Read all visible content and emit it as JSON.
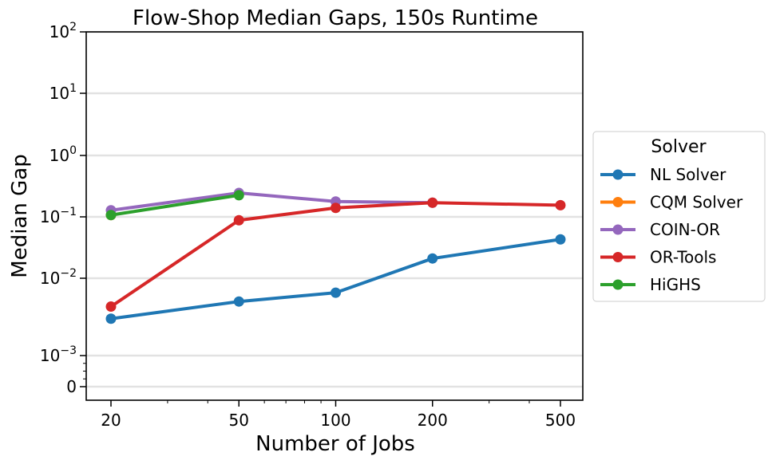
{
  "chart_data": {
    "type": "line",
    "title": "Flow-Shop Median Gaps, 150s Runtime",
    "xlabel": "Number of Jobs",
    "ylabel": "Median Gap",
    "x_scale": "log",
    "y_scale": "symlog",
    "x_ticks": [
      20,
      50,
      100,
      200,
      500
    ],
    "x_tick_labels": [
      "20",
      "50",
      "100",
      "200",
      "500"
    ],
    "y_ticks": [
      0,
      0.001,
      0.01,
      0.1,
      1,
      10,
      100
    ],
    "y_tick_labels": [
      {
        "base": "0",
        "exp": ""
      },
      {
        "base": "10",
        "exp": "−3"
      },
      {
        "base": "10",
        "exp": "−2"
      },
      {
        "base": "10",
        "exp": "−1"
      },
      {
        "base": "10",
        "exp": "0"
      },
      {
        "base": "10",
        "exp": "1"
      },
      {
        "base": "10",
        "exp": "2"
      }
    ],
    "ylim": [
      0,
      100
    ],
    "grid": "horizontal",
    "legend": {
      "title": "Solver",
      "placement": "outside-right"
    },
    "series": [
      {
        "name": "NL Solver",
        "color": "#1f77b4",
        "x": [
          20,
          50,
          100,
          200,
          500
        ],
        "y": [
          0.003,
          0.005,
          0.0065,
          0.021,
          0.043
        ]
      },
      {
        "name": "CQM Solver",
        "color": "#ff7f0e",
        "x": [
          20
        ],
        "y": [
          0.107
        ]
      },
      {
        "name": "COIN-OR",
        "color": "#9467bd",
        "x": [
          20,
          50,
          100,
          200
        ],
        "y": [
          0.128,
          0.245,
          0.178,
          0.17
        ]
      },
      {
        "name": "OR-Tools",
        "color": "#d62728",
        "x": [
          20,
          50,
          100,
          200,
          500
        ],
        "y": [
          0.0043,
          0.088,
          0.14,
          0.17,
          0.155
        ]
      },
      {
        "name": "HiGHS",
        "color": "#2ca02c",
        "x": [
          20,
          50
        ],
        "y": [
          0.107,
          0.225
        ]
      }
    ]
  }
}
